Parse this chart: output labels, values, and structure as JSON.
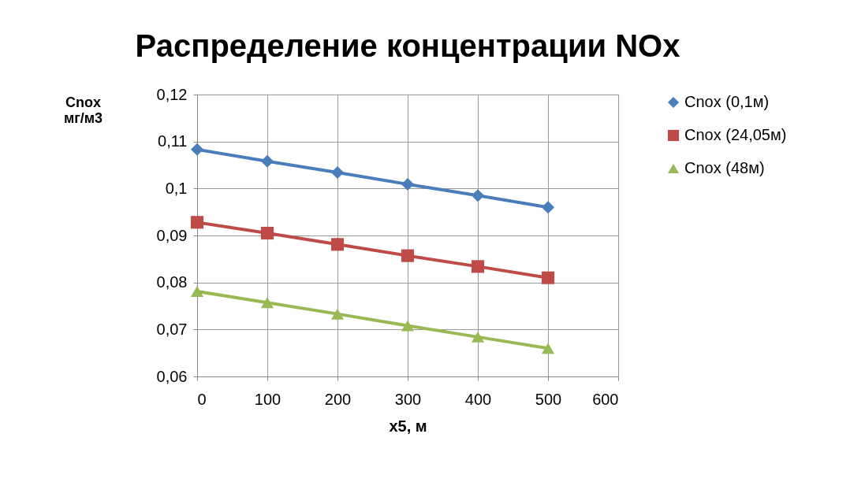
{
  "chart_data": {
    "type": "line",
    "title": "Распределение концентрации NOx",
    "xlabel": "x5, м",
    "ylabel": "Cnox мг/м3",
    "x": [
      0,
      100,
      200,
      300,
      400,
      500
    ],
    "series": [
      {
        "name": "Cnox (0,1м)",
        "color": "#4a7ebb",
        "marker": "diamond",
        "values": [
          0.1083,
          0.1058,
          0.1034,
          0.1009,
          0.0985,
          0.096
        ]
      },
      {
        "name": "Cnox (24,05м)",
        "color": "#be4b48",
        "marker": "square",
        "values": [
          0.0928,
          0.0905,
          0.0881,
          0.0857,
          0.0834,
          0.081
        ]
      },
      {
        "name": "Cnox (48м)",
        "color": "#98b954",
        "marker": "triangle",
        "values": [
          0.0781,
          0.0757,
          0.0733,
          0.0708,
          0.0684,
          0.066
        ]
      }
    ],
    "xlim": [
      0,
      600
    ],
    "xticks": [
      0,
      100,
      200,
      300,
      400,
      500,
      600
    ],
    "ylim": [
      0.06,
      0.12
    ],
    "yticks": [
      {
        "value": 0.06,
        "label": "0,06"
      },
      {
        "value": 0.07,
        "label": "0,07"
      },
      {
        "value": 0.08,
        "label": "0,08"
      },
      {
        "value": 0.09,
        "label": "0,09"
      },
      {
        "value": 0.1,
        "label": "0,1"
      },
      {
        "value": 0.11,
        "label": "0,11"
      },
      {
        "value": 0.12,
        "label": "0,12"
      }
    ],
    "grid": true,
    "legend": "right",
    "line_style": "solid"
  }
}
